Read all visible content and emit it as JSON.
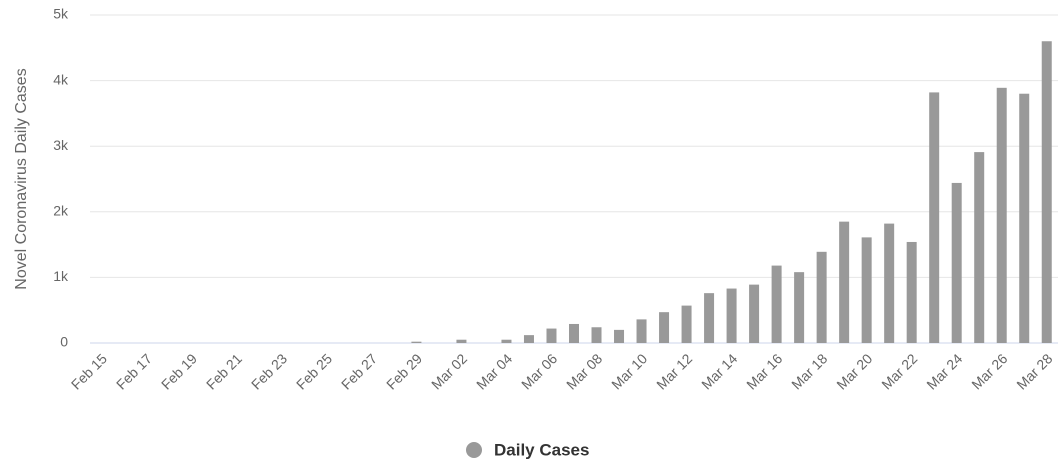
{
  "chart_data": {
    "type": "bar",
    "y_axis_label": "Novel Coronavirus Daily Cases",
    "categories": [
      "Feb 15",
      null,
      "Feb 17",
      null,
      "Feb 19",
      null,
      "Feb 21",
      null,
      "Feb 23",
      null,
      "Feb 25",
      null,
      "Feb 27",
      null,
      "Feb 29",
      null,
      "Mar 02",
      null,
      "Mar 04",
      null,
      "Mar 06",
      null,
      "Mar 08",
      null,
      "Mar 10",
      null,
      "Mar 12",
      null,
      "Mar 14",
      null,
      "Mar 16",
      null,
      "Mar 18",
      null,
      "Mar 20",
      null,
      "Mar 22",
      null,
      "Mar 24",
      null,
      "Mar 26",
      null,
      "Mar 28"
    ],
    "series": [
      {
        "name": "Daily Cases",
        "color": "#999999",
        "values": [
          0,
          0,
          0,
          0,
          0,
          0,
          0,
          0,
          0,
          0,
          0,
          0,
          0,
          0,
          20,
          0,
          50,
          0,
          50,
          120,
          220,
          290,
          240,
          200,
          360,
          470,
          570,
          760,
          830,
          890,
          1180,
          1080,
          1390,
          1850,
          1610,
          1820,
          1540,
          3820,
          2440,
          2910,
          3890,
          3800,
          4600
        ]
      }
    ],
    "ylim": [
      0,
      5000
    ],
    "yticks": [
      0,
      {
        "value": 1000,
        "label": "1k"
      },
      {
        "value": 2000,
        "label": "2k"
      },
      {
        "value": 3000,
        "label": "3k"
      },
      {
        "value": 4000,
        "label": "4k"
      },
      {
        "value": 5000,
        "label": "5k"
      }
    ],
    "grid": true,
    "legend": "bottom"
  }
}
